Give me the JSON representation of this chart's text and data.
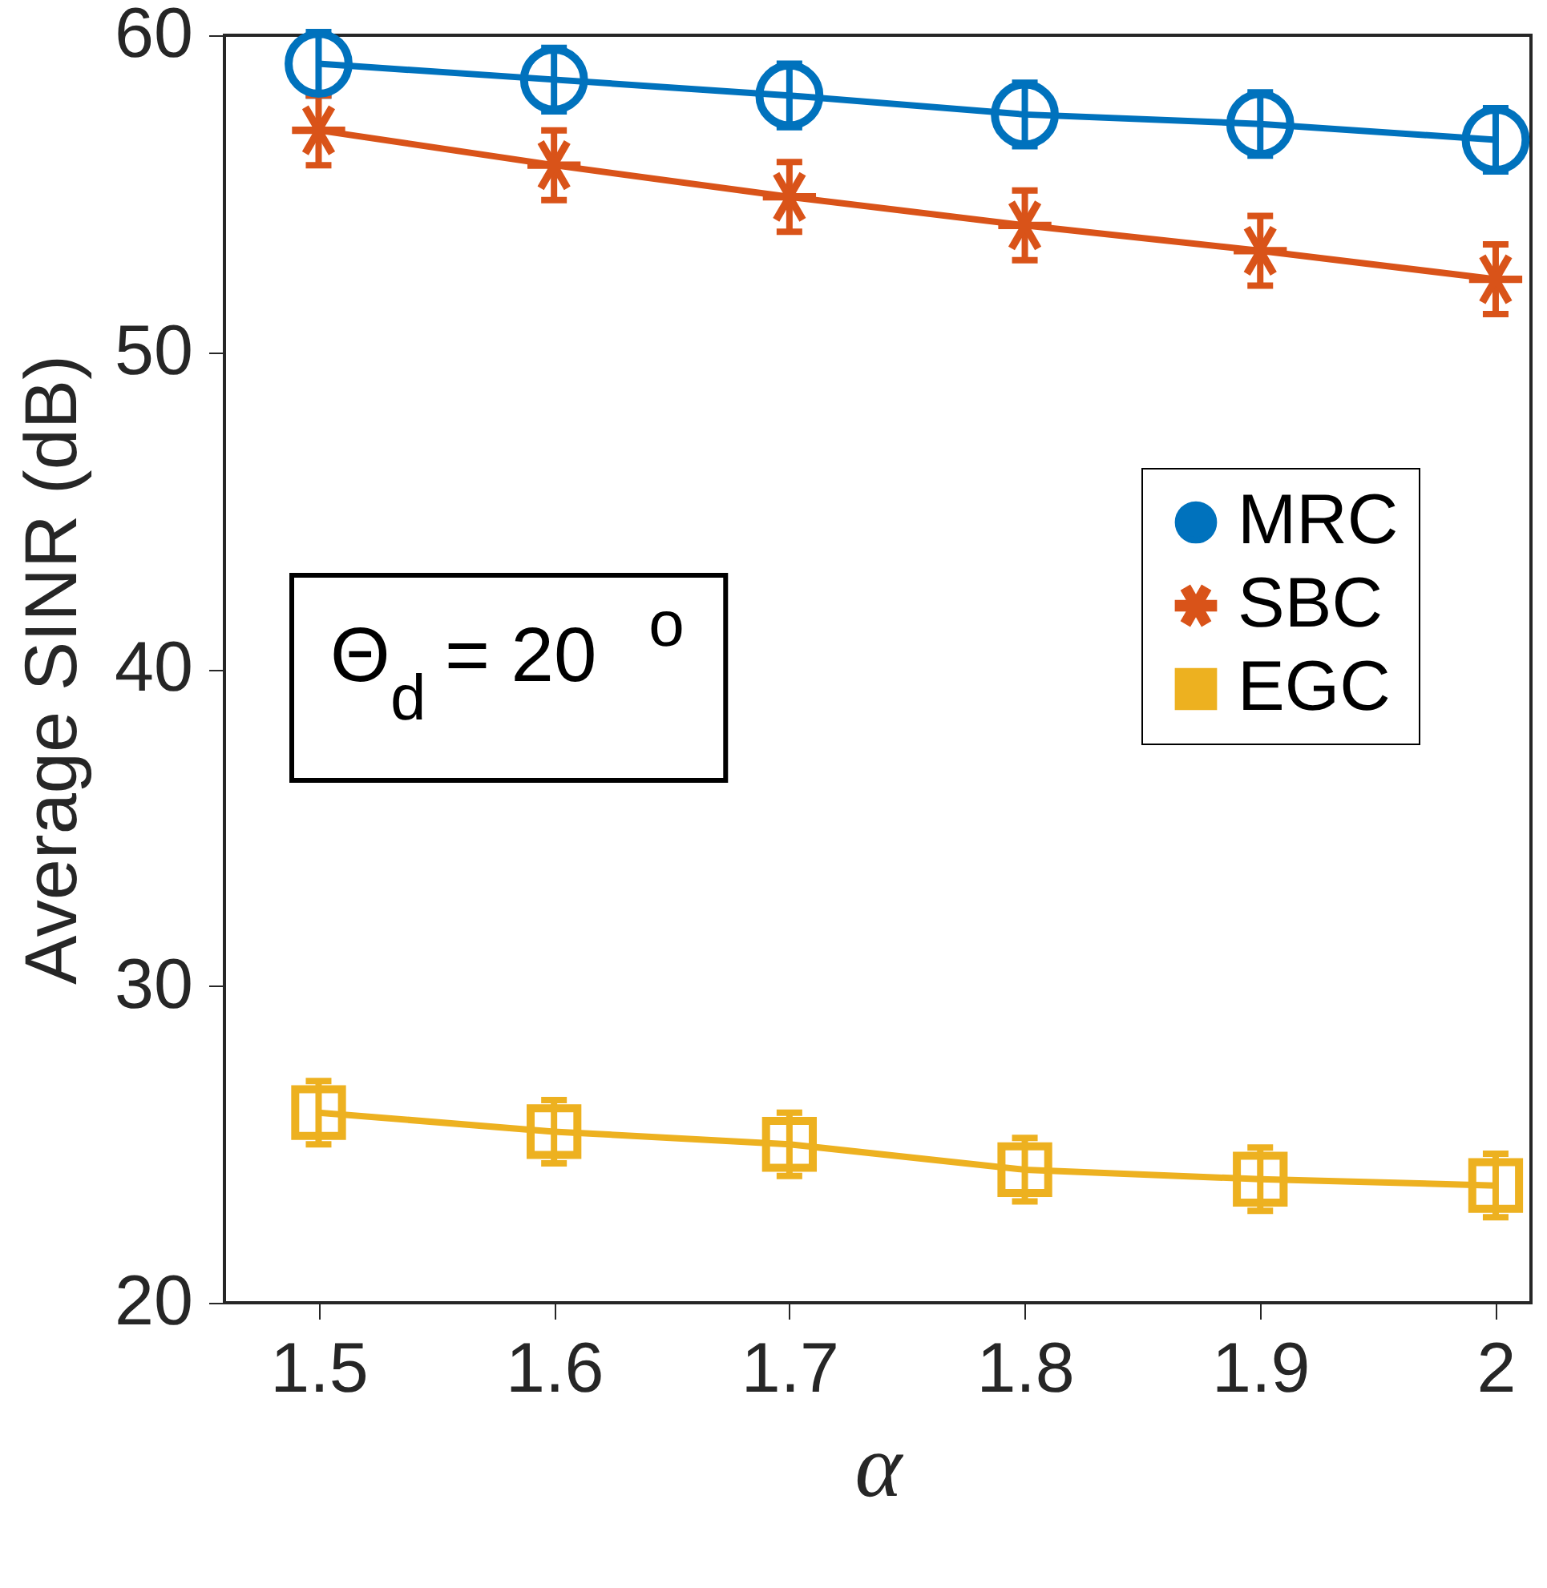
{
  "chart_data": {
    "type": "line",
    "x": [
      1.5,
      1.6,
      1.7,
      1.8,
      1.9,
      2
    ],
    "xlabel": "α",
    "ylabel": "Average SINR (dB)",
    "xlim": [
      1.46,
      2.015
    ],
    "xticks": [
      1.5,
      1.6,
      1.7,
      1.8,
      1.9,
      2
    ],
    "ylim": [
      20,
      60
    ],
    "yticks": [
      20,
      30,
      40,
      50,
      60
    ],
    "grid": false,
    "legend": "right",
    "annotations": [
      "Θ$_{d}$ = 20$^{o}$"
    ],
    "series": [
      {
        "name": "MRC",
        "color": "#0072bd",
        "marker": "circle",
        "values": [
          59.1,
          58.6,
          58.1,
          57.5,
          57.2,
          56.7
        ],
        "errors": [
          1.0,
          1.0,
          1.0,
          1.0,
          1.0,
          1.0
        ]
      },
      {
        "name": "SBC",
        "color": "#d95319",
        "marker": "star",
        "values": [
          57.0,
          55.9,
          54.9,
          54.0,
          53.2,
          52.3
        ],
        "errors": [
          1.1,
          1.1,
          1.1,
          1.1,
          1.1,
          1.1
        ]
      },
      {
        "name": "EGC",
        "color": "#edb120",
        "marker": "square",
        "values": [
          26.0,
          25.4,
          25.0,
          24.2,
          23.9,
          23.7
        ],
        "errors": [
          1.0,
          1.0,
          1.0,
          1.0,
          1.0,
          1.0
        ]
      }
    ]
  }
}
